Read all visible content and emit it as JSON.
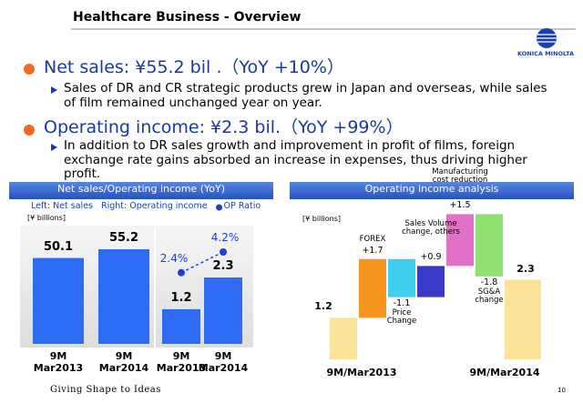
{
  "header": {
    "title": "Healthcare Business - Overview",
    "logo": "KONICA MINOLTA"
  },
  "bullets": [
    {
      "main": "Net sales:  ¥55.2 bil .（YoY +10%）",
      "sub": "Sales of DR and CR strategic products grew in Japan and overseas, while sales of film remained unchanged year on year."
    },
    {
      "main": "Operating income:  ¥2.3 bil.（YoY +99%）",
      "sub": "In addition to DR sales growth and improvement in profit of films, foreign exchange rate gains absorbed an increase in expenses, thus driving higher profit."
    }
  ],
  "chart_data": [
    {
      "type": "bar",
      "title": "Net sales/Operating income (YoY)",
      "unit": "[¥ billions]",
      "categories": [
        "9M Mar2013",
        "9M Mar2014"
      ],
      "series": [
        {
          "name": "Left: Net sales",
          "color": "#2f6cf5",
          "values": [
            50.1,
            55.2
          ]
        },
        {
          "name": "Right: Operating income",
          "color": "#2f6cf5",
          "values": [
            1.2,
            2.3
          ]
        },
        {
          "name": "OP Ratio",
          "color": "#1f3fd0",
          "values": [
            2.4,
            4.2
          ],
          "value_labels": [
            "2.4%",
            "4.2%"
          ]
        }
      ]
    },
    {
      "type": "waterfall",
      "title": "Operating income analysis",
      "unit": "[¥ billions]",
      "categories": [
        "9M/Mar2013",
        "FOREX",
        "Price Change",
        "Sales Volume change, others",
        "Manufacturing cost reduction",
        "SG&A change",
        "9M/Mar2014"
      ],
      "values": [
        1.2,
        1.7,
        -1.1,
        0.9,
        1.5,
        -1.8,
        2.3
      ],
      "value_labels": [
        "1.2",
        "+1.7",
        "-1.1",
        "+0.9",
        "+1.5",
        "-1.8",
        "2.3"
      ],
      "totals": [
        true,
        false,
        false,
        false,
        false,
        false,
        true
      ],
      "colors": [
        "#fde39a",
        "#f7941d",
        "#3fd0f0",
        "#3a3ac8",
        "#e070c8",
        "#8ee070",
        "#fde39a"
      ]
    }
  ],
  "footer": {
    "slogan": "Giving Shape to Ideas",
    "page": "10"
  }
}
